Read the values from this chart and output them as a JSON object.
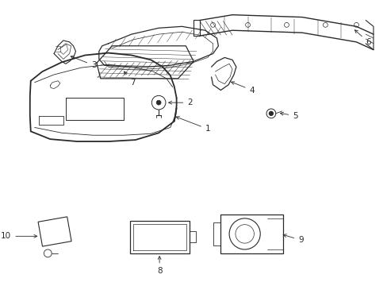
{
  "background_color": "#ffffff",
  "line_color": "#2a2a2a",
  "fig_width": 4.89,
  "fig_height": 3.6,
  "dpi": 100,
  "label_fs": 7.5,
  "lw_main": 1.0,
  "lw_thin": 0.5,
  "lw_detail": 0.35
}
